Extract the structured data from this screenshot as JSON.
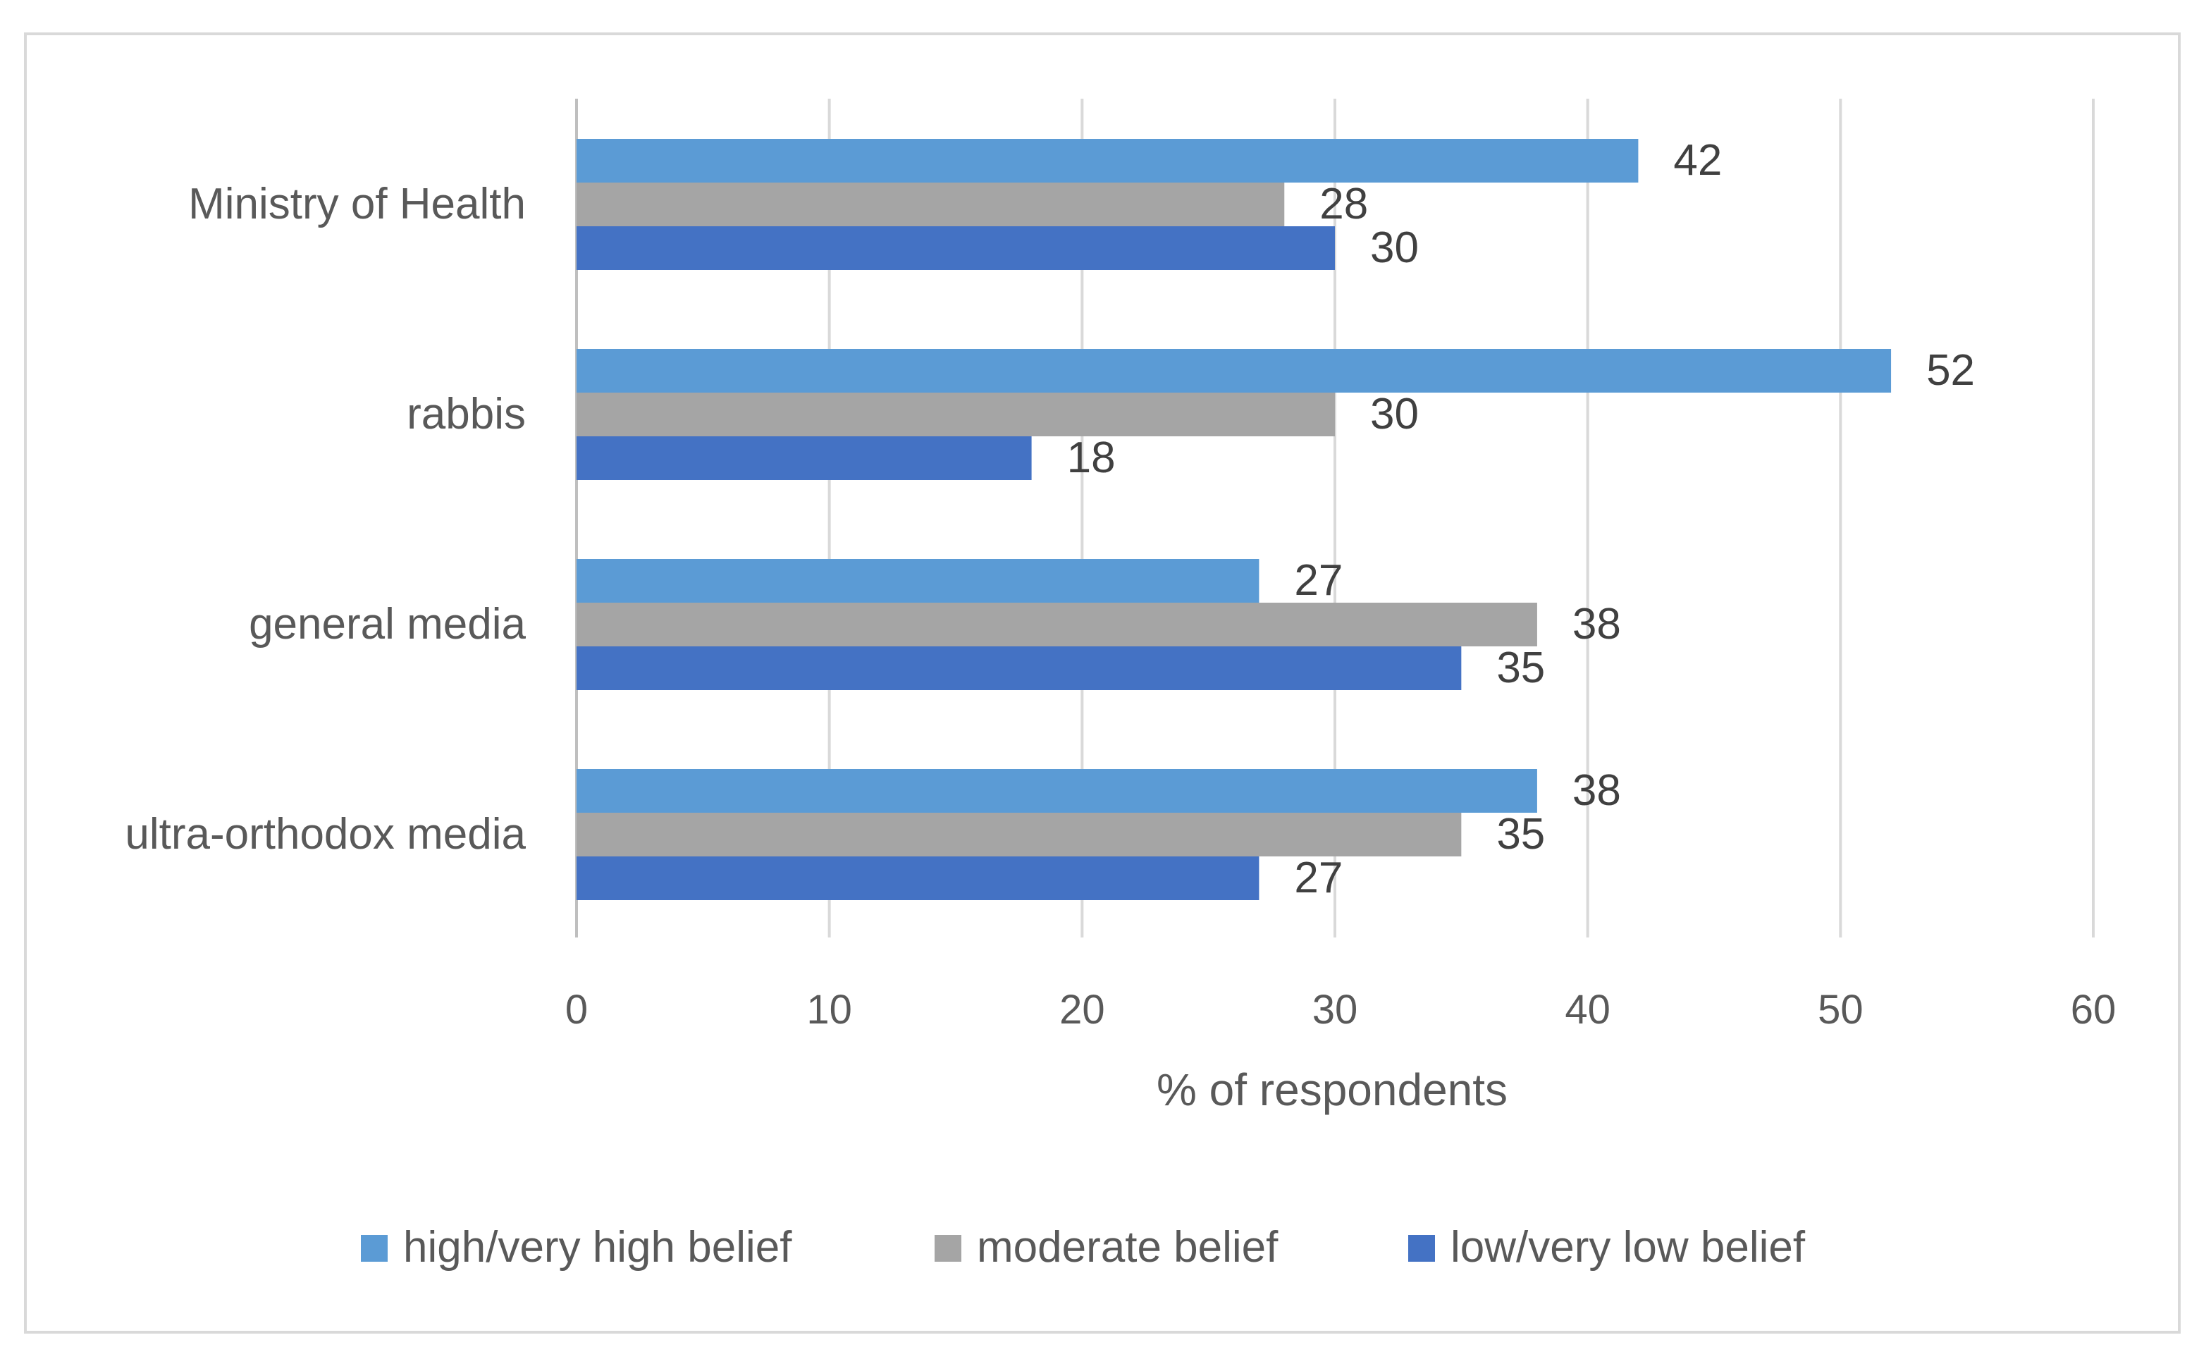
{
  "chart_data": {
    "type": "bar",
    "orientation": "horizontal",
    "categories": [
      "Ministry of Health",
      "rabbis",
      "general media",
      "ultra-orthodox media"
    ],
    "series": [
      {
        "name": "high/very high belief",
        "color": "#5b9bd5",
        "values": [
          42,
          52,
          27,
          38
        ]
      },
      {
        "name": "moderate belief",
        "color": "#a5a5a5",
        "values": [
          28,
          30,
          38,
          35
        ]
      },
      {
        "name": "low/very low belief",
        "color": "#4472c4",
        "values": [
          30,
          18,
          35,
          27
        ]
      }
    ],
    "xlabel": "% of respondents",
    "ylabel": "",
    "xlim": [
      0,
      60
    ],
    "xticks": [
      0,
      10,
      20,
      30,
      40,
      50,
      60
    ],
    "grid": true,
    "legend_position": "bottom",
    "data_labels": true
  }
}
